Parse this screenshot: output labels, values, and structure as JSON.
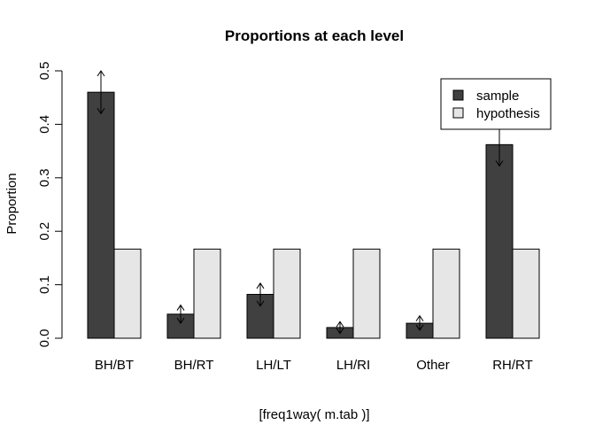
{
  "chart_data": {
    "type": "bar",
    "title": "Proportions at each level",
    "xlabel": "[freq1way( m.tab )]",
    "ylabel": "Proportion",
    "categories": [
      "BH/BT",
      "BH/RT",
      "LH/LT",
      "LH/RI",
      "Other",
      "RH/RT"
    ],
    "series": [
      {
        "name": "sample",
        "color": "#404040",
        "values": [
          0.46,
          0.045,
          0.082,
          0.02,
          0.028,
          0.362
        ],
        "error_low": [
          0.42,
          0.028,
          0.06,
          0.009,
          0.015,
          0.322
        ],
        "error_high": [
          0.5,
          0.062,
          0.103,
          0.031,
          0.042,
          0.402
        ]
      },
      {
        "name": "hypothesis",
        "color": "#e6e6e6",
        "values": [
          0.1667,
          0.1667,
          0.1667,
          0.1667,
          0.1667,
          0.1667
        ]
      }
    ],
    "ylim": [
      0,
      0.5
    ],
    "yticks": [
      "0.0",
      "0.1",
      "0.2",
      "0.3",
      "0.4",
      "0.5"
    ],
    "grid": false,
    "legend_position": "top-right"
  }
}
